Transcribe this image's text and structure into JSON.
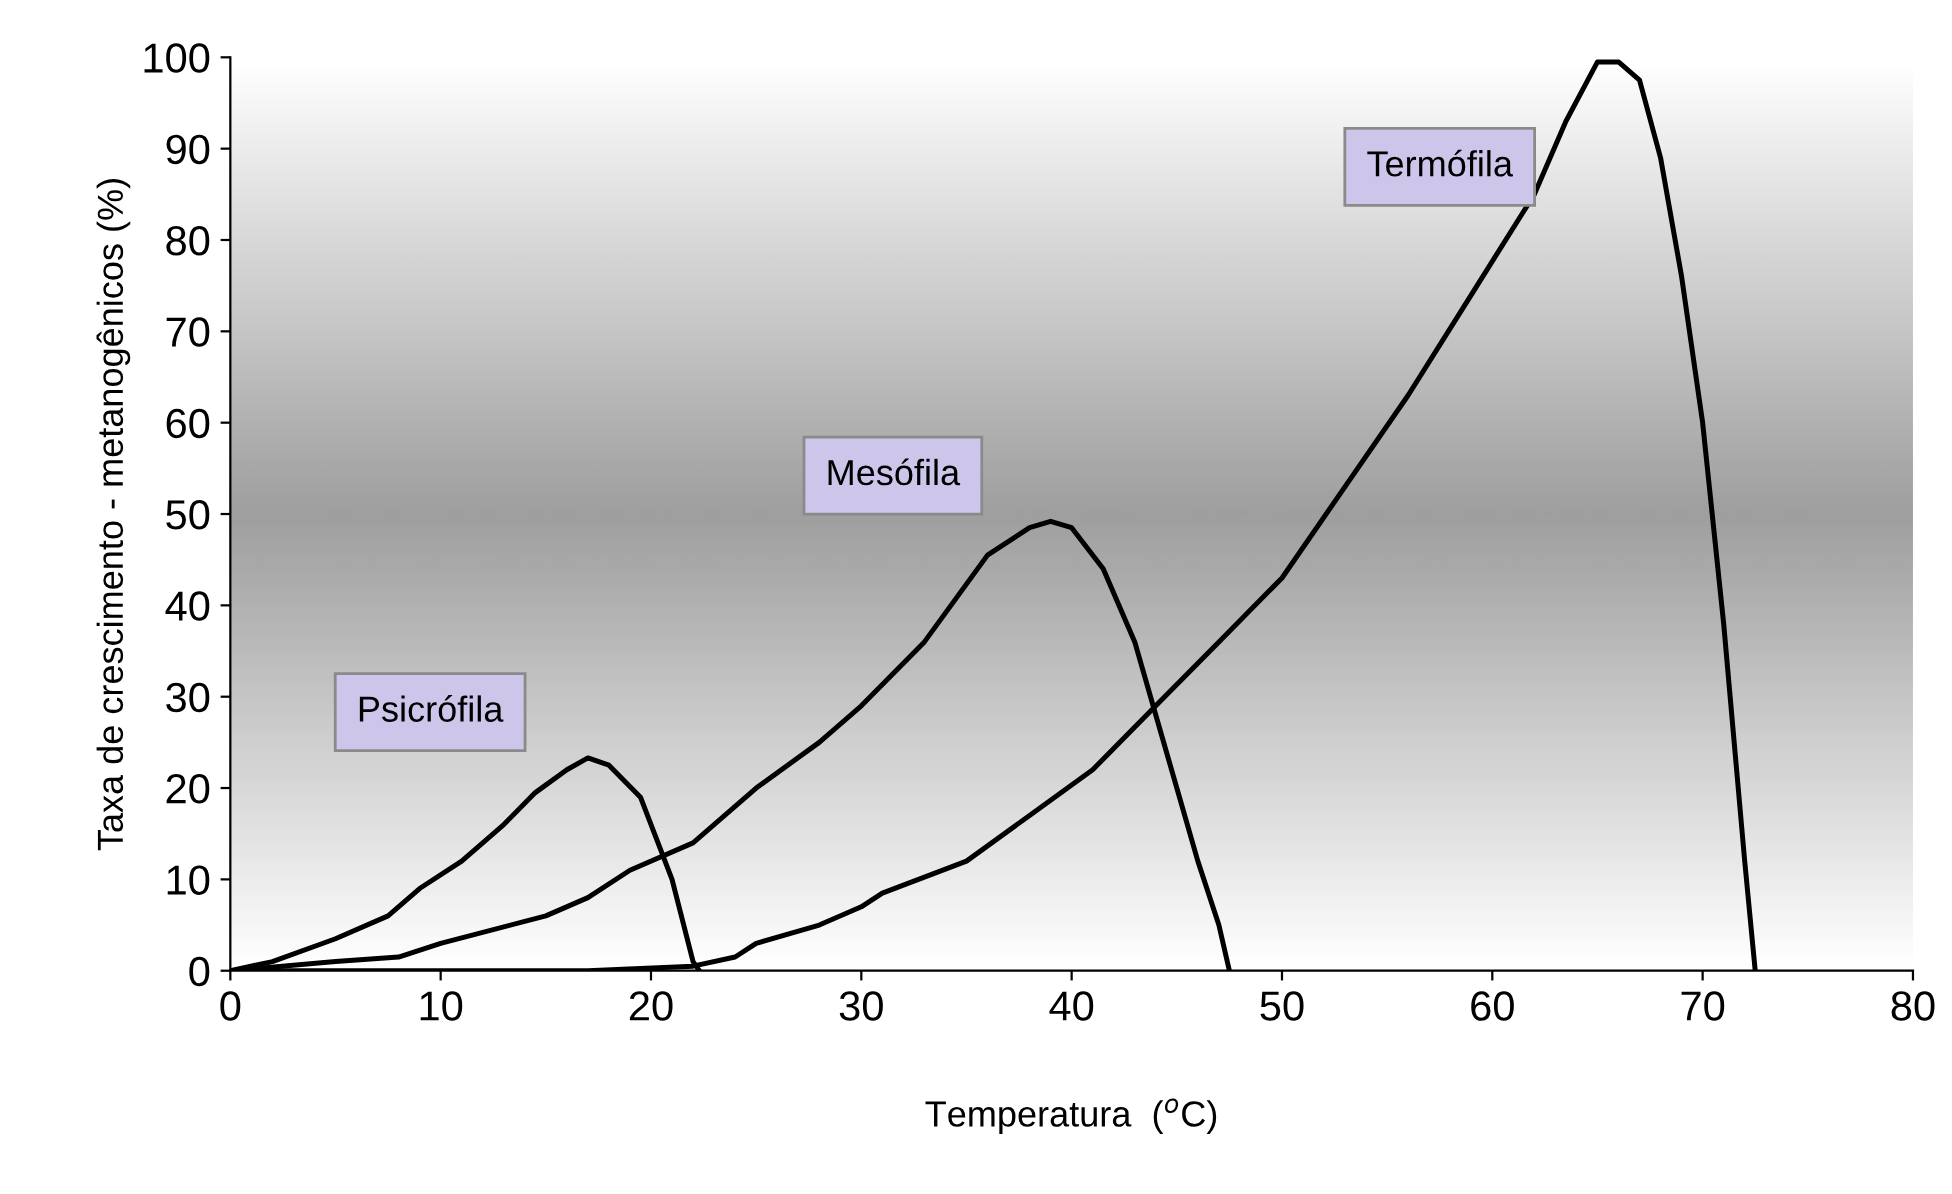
{
  "chart_data": {
    "type": "line",
    "xlabel": "Temperatura  ($^{o}$C)",
    "ylabel": "Taxa de crescimento - metanogênicos (%)",
    "xlim": [
      0,
      80
    ],
    "xticks": [
      0,
      10,
      20,
      30,
      40,
      50,
      60,
      70,
      80
    ],
    "ylim": [
      0,
      100
    ],
    "yticks": [
      0,
      10,
      20,
      30,
      40,
      50,
      60,
      70,
      80,
      90,
      100
    ],
    "grid": false,
    "legend": false,
    "marker": "none",
    "line_style": "solid",
    "series": [
      {
        "name": "Psicrófila",
        "color": "#000000",
        "x": [
          0,
          2,
          5,
          7.5,
          9,
          11,
          13,
          14.5,
          16,
          17,
          18,
          19.5,
          21,
          22,
          22.3
        ],
        "values": [
          0,
          1,
          3.5,
          6,
          9,
          12,
          16,
          19.5,
          22,
          23.3,
          22.5,
          19,
          10,
          1,
          0
        ]
      },
      {
        "name": "Mesófila",
        "color": "#000000",
        "x": [
          0,
          5,
          8,
          10,
          15,
          17,
          19,
          22,
          25,
          28,
          30,
          33,
          36,
          38,
          39,
          40,
          41.5,
          43,
          44,
          45,
          46,
          47,
          47.5
        ],
        "values": [
          0,
          1,
          1.5,
          3,
          6,
          8,
          11,
          14,
          20,
          25,
          29,
          36,
          45.5,
          48.5,
          49.2,
          48.5,
          44,
          36,
          28,
          20,
          12,
          5,
          0
        ]
      },
      {
        "name": "Termófila",
        "color": "#000000",
        "x": [
          0,
          17,
          22,
          24,
          25,
          28,
          30,
          31,
          35,
          38,
          41,
          44,
          47,
          50,
          53,
          56,
          59,
          62,
          63.5,
          65,
          66,
          67,
          68,
          69,
          70,
          71,
          72,
          72.5
        ],
        "values": [
          0,
          0,
          0.5,
          1.5,
          3,
          5,
          7,
          8.5,
          12,
          17,
          22,
          29,
          36,
          43,
          53,
          63,
          74,
          85,
          93,
          99.5,
          99.5,
          97.5,
          89,
          76,
          60,
          38,
          12,
          0
        ]
      }
    ]
  }
}
